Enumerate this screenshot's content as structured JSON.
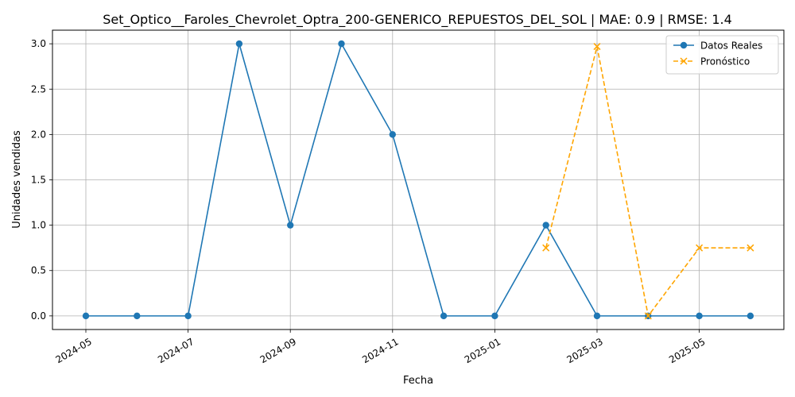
{
  "chart_data": {
    "type": "line",
    "title": "Set_Optico__Faroles_Chevrolet_Optra_200-GENERICO_REPUESTOS_DEL_SOL | MAE: 0.9 | RMSE: 1.4",
    "xlabel": "Fecha",
    "ylabel": "Unidades vendidas",
    "ylim": [
      -0.15,
      3.15
    ],
    "grid": true,
    "legend_position": "top-right",
    "x_ticks": [
      "2024-05",
      "2024-07",
      "2024-09",
      "2024-11",
      "2025-01",
      "2025-03",
      "2025-05"
    ],
    "y_ticks": [
      "0.0",
      "0.5",
      "1.0",
      "1.5",
      "2.0",
      "2.5",
      "3.0"
    ],
    "series": [
      {
        "name": "Datos Reales",
        "color": "#1f77b4",
        "style": "solid",
        "marker": "circle",
        "x": [
          "2024-05",
          "2024-06",
          "2024-07",
          "2024-08",
          "2024-09",
          "2024-10",
          "2024-11",
          "2024-12",
          "2025-01",
          "2025-02",
          "2025-03",
          "2025-04",
          "2025-05",
          "2025-06"
        ],
        "values": [
          0,
          0,
          0,
          3,
          1,
          3,
          2,
          0,
          0,
          1,
          0,
          0,
          0,
          0
        ]
      },
      {
        "name": "Pronóstico",
        "color": "#ffa500",
        "style": "dashed",
        "marker": "x",
        "x": [
          "2025-02",
          "2025-03",
          "2025-04",
          "2025-05",
          "2025-06"
        ],
        "values": [
          0.75,
          2.97,
          0,
          0.75,
          0.75
        ]
      }
    ]
  }
}
